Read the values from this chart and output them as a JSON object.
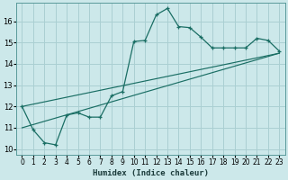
{
  "xlabel": "Humidex (Indice chaleur)",
  "bg_color": "#cce8ea",
  "grid_color": "#aacfd2",
  "line_color": "#1a6e64",
  "xlim": [
    -0.5,
    23.5
  ],
  "ylim": [
    9.75,
    16.85
  ],
  "xticks": [
    0,
    1,
    2,
    3,
    4,
    5,
    6,
    7,
    8,
    9,
    10,
    11,
    12,
    13,
    14,
    15,
    16,
    17,
    18,
    19,
    20,
    21,
    22,
    23
  ],
  "yticks": [
    10,
    11,
    12,
    13,
    14,
    15,
    16
  ],
  "curve1_x": [
    0,
    1,
    2,
    3,
    4,
    5,
    6,
    7,
    8,
    9,
    10,
    11,
    12,
    13,
    14,
    15,
    16,
    17,
    18,
    19,
    20,
    21,
    22,
    23
  ],
  "curve1_y": [
    12.0,
    10.9,
    10.3,
    10.2,
    11.6,
    11.7,
    11.5,
    11.5,
    12.5,
    12.7,
    15.05,
    15.1,
    16.3,
    16.6,
    15.75,
    15.7,
    15.25,
    14.75,
    14.75,
    14.75,
    14.75,
    15.2,
    15.1,
    14.6
  ],
  "line1_x": [
    0,
    23
  ],
  "line1_y": [
    11.0,
    14.5
  ],
  "line2_x": [
    0,
    23
  ],
  "line2_y": [
    12.0,
    14.5
  ]
}
